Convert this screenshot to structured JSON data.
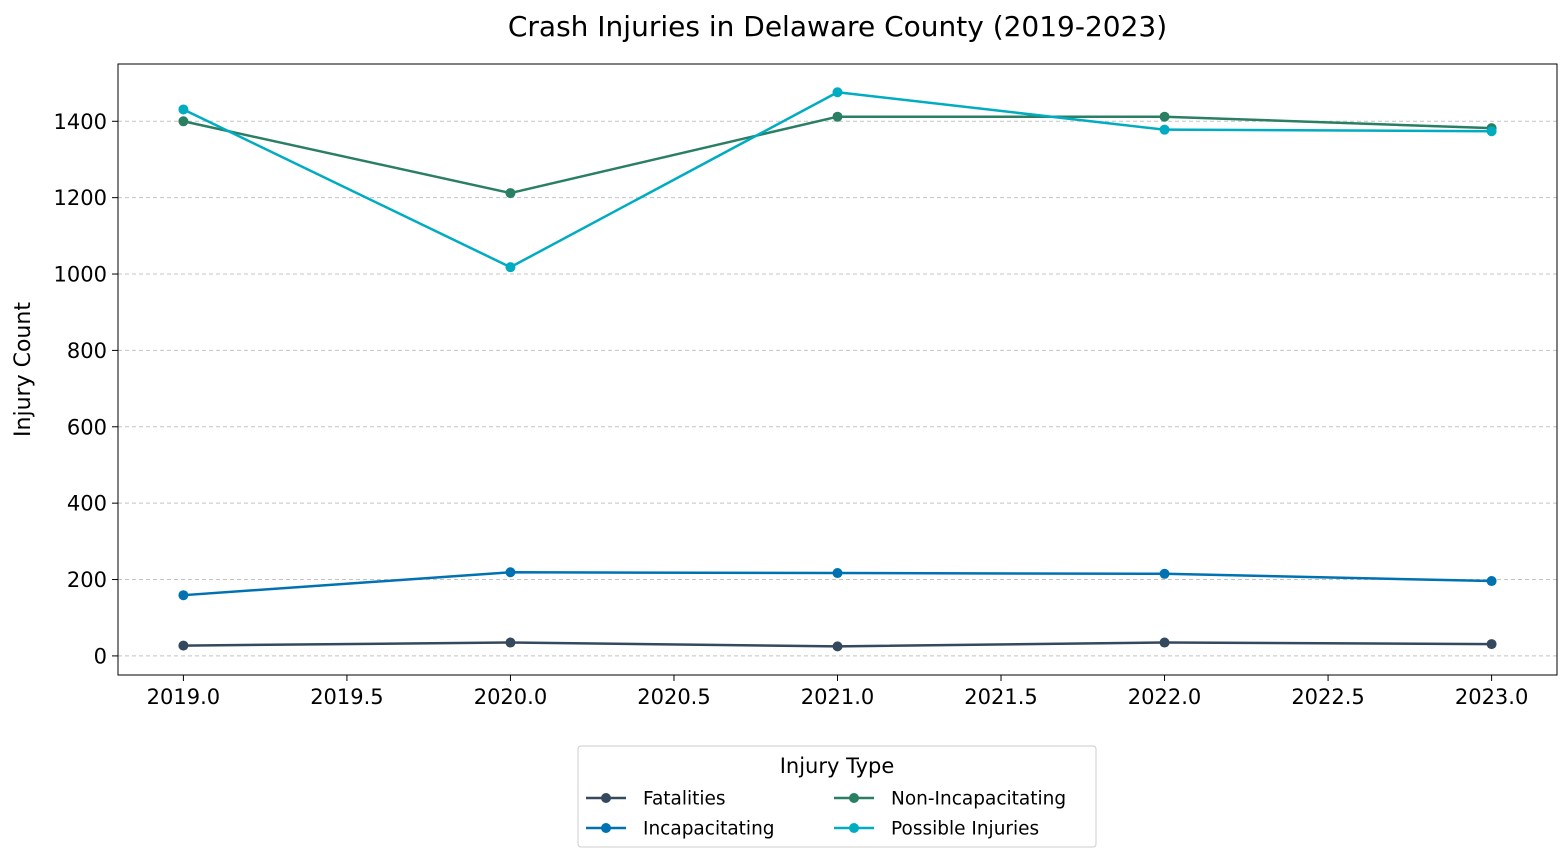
{
  "chart_data": {
    "type": "line",
    "title": "Crash Injuries in Delaware County (2019-2023)",
    "xlabel": "",
    "ylabel": "Injury Count",
    "x": [
      2019,
      2020,
      2021,
      2022,
      2023
    ],
    "xlim": [
      2018.8,
      2023.2
    ],
    "ylim": [
      -50,
      1550
    ],
    "x_ticks": [
      2019.0,
      2019.5,
      2020.0,
      2020.5,
      2021.0,
      2021.5,
      2022.0,
      2022.5,
      2023.0
    ],
    "x_tick_labels": [
      "2019.0",
      "2019.5",
      "2020.0",
      "2020.5",
      "2021.0",
      "2021.5",
      "2022.0",
      "2022.5",
      "2023.0"
    ],
    "y_ticks": [
      0,
      200,
      400,
      600,
      800,
      1000,
      1200,
      1400
    ],
    "y_tick_labels": [
      "0",
      "200",
      "400",
      "600",
      "800",
      "1000",
      "1200",
      "1400"
    ],
    "grid": "horizontal dashed",
    "legend_title": "Injury Type",
    "legend_position": "bottom-center",
    "series": [
      {
        "name": "Fatalities",
        "color": "#34495e",
        "values": [
          27,
          35,
          25,
          35,
          31
        ]
      },
      {
        "name": "Incapacitating",
        "color": "#0072b2",
        "values": [
          159,
          219,
          217,
          215,
          196
        ]
      },
      {
        "name": "Non-Incapacitating",
        "color": "#2a7f62",
        "values": [
          1400,
          1212,
          1412,
          1412,
          1382
        ]
      },
      {
        "name": "Possible Injuries",
        "color": "#00acc1",
        "values": [
          1431,
          1018,
          1476,
          1378,
          1374
        ]
      }
    ]
  }
}
